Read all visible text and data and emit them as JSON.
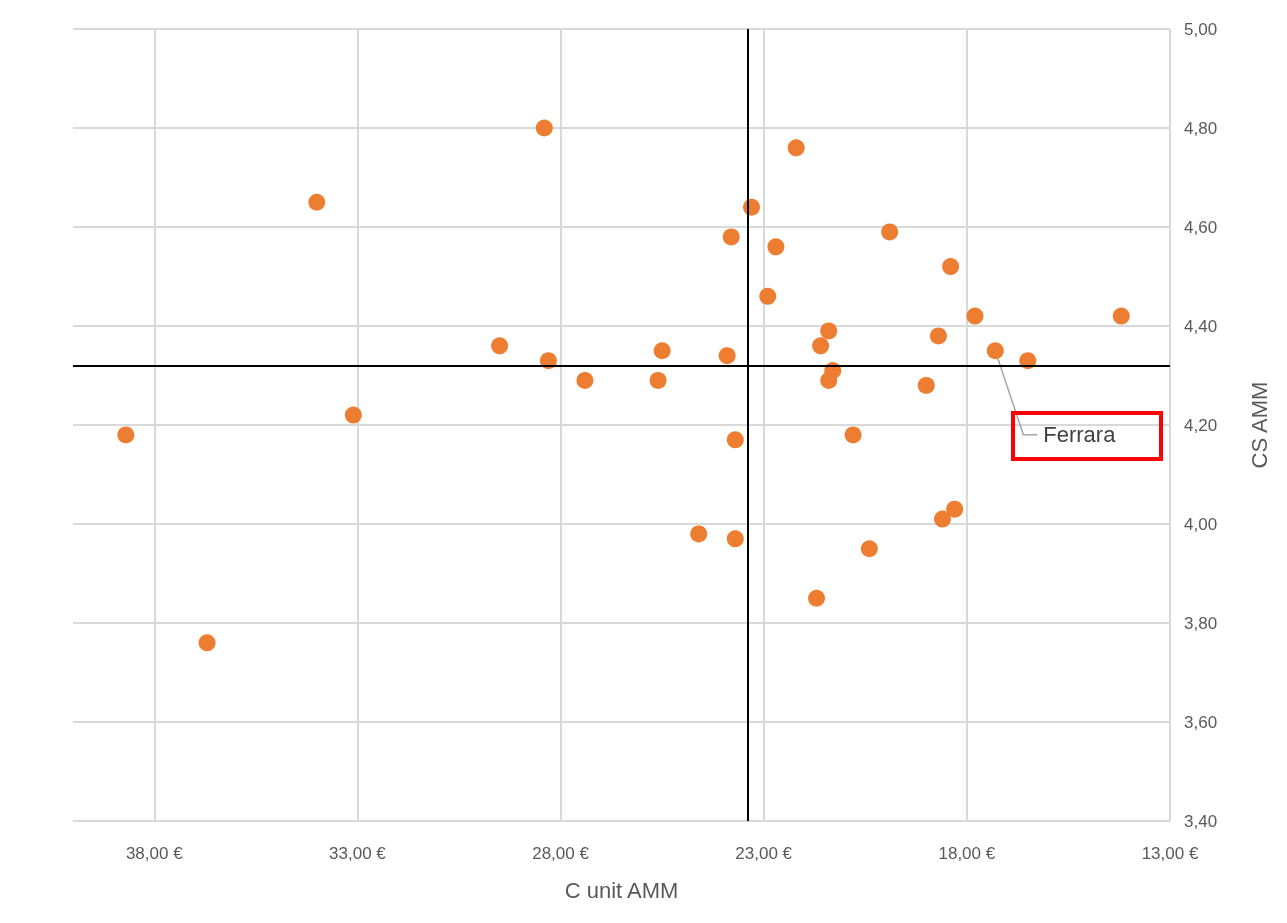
{
  "chart_data": {
    "type": "scatter",
    "xlabel": "C unit AMM",
    "ylabel": "CS AMM",
    "x": [
      38.7,
      36.7,
      34.0,
      33.1,
      29.5,
      28.4,
      28.3,
      27.4,
      25.6,
      25.5,
      24.6,
      23.9,
      23.8,
      23.7,
      23.7,
      23.3,
      22.9,
      22.7,
      22.2,
      21.7,
      21.6,
      21.4,
      21.3,
      21.4,
      20.8,
      20.4,
      19.9,
      19.0,
      18.7,
      18.6,
      18.4,
      18.3,
      17.8,
      17.3,
      16.5,
      14.2
    ],
    "series": [
      {
        "color": "#ed7d31",
        "values": [
          4.18,
          3.76,
          4.65,
          4.22,
          4.36,
          4.8,
          4.33,
          4.29,
          4.29,
          4.35,
          3.98,
          4.34,
          4.58,
          4.17,
          3.97,
          4.64,
          4.46,
          4.56,
          4.76,
          3.85,
          4.36,
          4.39,
          4.31,
          4.29,
          4.18,
          3.95,
          4.59,
          4.28,
          4.38,
          4.01,
          4.52,
          4.03,
          4.42,
          4.35,
          4.33,
          4.42
        ]
      }
    ],
    "xlim": [
      40,
      13
    ],
    "xticks": [
      {
        "value": 38,
        "label": "38,00 €"
      },
      {
        "value": 33,
        "label": "33,00 €"
      },
      {
        "value": 28,
        "label": "28,00 €"
      },
      {
        "value": 23,
        "label": "23,00 €"
      },
      {
        "value": 18,
        "label": "18,00 €"
      },
      {
        "value": 13,
        "label": "13,00 €"
      }
    ],
    "ylim": [
      3.4,
      5.0
    ],
    "yticks": [
      {
        "value": 3.4,
        "label": "3,40"
      },
      {
        "value": 3.6,
        "label": "3,60"
      },
      {
        "value": 3.8,
        "label": "3,80"
      },
      {
        "value": 4.0,
        "label": "4,00"
      },
      {
        "value": 4.2,
        "label": "4,20"
      },
      {
        "value": 4.4,
        "label": "4,40"
      },
      {
        "value": 4.6,
        "label": "4,60"
      },
      {
        "value": 4.8,
        "label": "4,80"
      },
      {
        "value": 5.0,
        "label": "5,00"
      }
    ],
    "ref_lines": [
      {
        "axis": "x",
        "value": 23.4,
        "color": "#000000"
      },
      {
        "axis": "y",
        "value": 4.32,
        "color": "#000000"
      }
    ],
    "annotations": [
      {
        "text": "Ferrara",
        "x": 17.3,
        "y": 4.35
      }
    ],
    "grid": true,
    "marker": "circle",
    "legend": false
  }
}
